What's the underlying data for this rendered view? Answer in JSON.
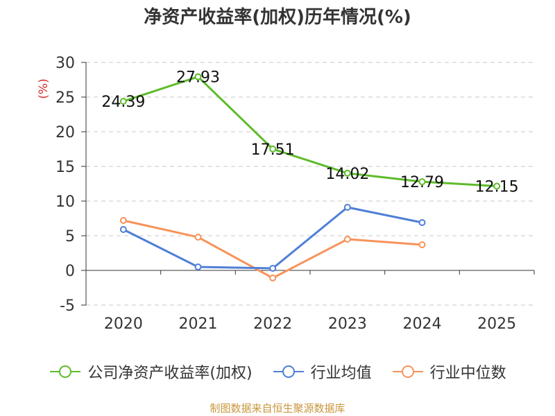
{
  "chart_data": {
    "type": "line",
    "title": "净资产收益率(加权)历年情况(%)",
    "ylabel": "(%)",
    "xlabel": "",
    "categories": [
      "2020",
      "2021",
      "2022",
      "2023",
      "2024",
      "2025"
    ],
    "ylim": [
      -5,
      30
    ],
    "yticks": [
      -5,
      0,
      5,
      10,
      15,
      20,
      25,
      30
    ],
    "grid": true,
    "legend_position": "bottom",
    "series": [
      {
        "name": "公司净资产收益率(加权)",
        "color": "#5dbb2a",
        "values": [
          24.39,
          27.93,
          17.51,
          14.02,
          12.79,
          12.15
        ],
        "labels": [
          "24.39",
          "27.93",
          "17.51",
          "14.02",
          "12.79",
          "12.15"
        ]
      },
      {
        "name": "行业均值",
        "color": "#4e7fd6",
        "values": [
          5.9,
          0.5,
          0.3,
          9.1,
          6.9,
          null
        ]
      },
      {
        "name": "行业中位数",
        "color": "#f7935a",
        "values": [
          7.2,
          4.8,
          -1.1,
          4.5,
          3.7,
          null
        ]
      }
    ]
  },
  "footer": {
    "source": "制图数据来自恒生聚源数据库"
  }
}
